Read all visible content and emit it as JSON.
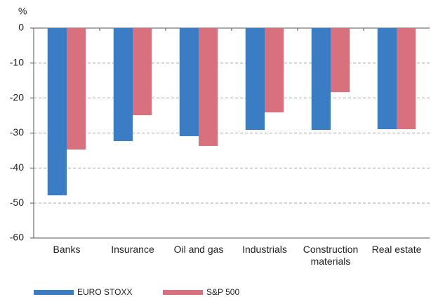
{
  "chart_data": {
    "type": "bar",
    "unit_label": "%",
    "categories": [
      "Banks",
      "Insurance",
      "Oil and gas",
      "Industrials",
      "Construction materials",
      "Real estate"
    ],
    "series": [
      {
        "name": "EURO STOXX",
        "color": "#3b7dc4",
        "values": [
          -47.8,
          -32.3,
          -30.9,
          -29.1,
          -29.1,
          -28.9
        ]
      },
      {
        "name": "S&P 500",
        "color": "#d9707e",
        "values": [
          -34.7,
          -24.9,
          -33.7,
          -24.1,
          -18.3,
          -28.9
        ]
      }
    ],
    "ylim": [
      -60,
      0
    ],
    "yticks": [
      0,
      -10,
      -20,
      -30,
      -40,
      -50,
      -60
    ],
    "grid": true,
    "legend": "bottom"
  }
}
